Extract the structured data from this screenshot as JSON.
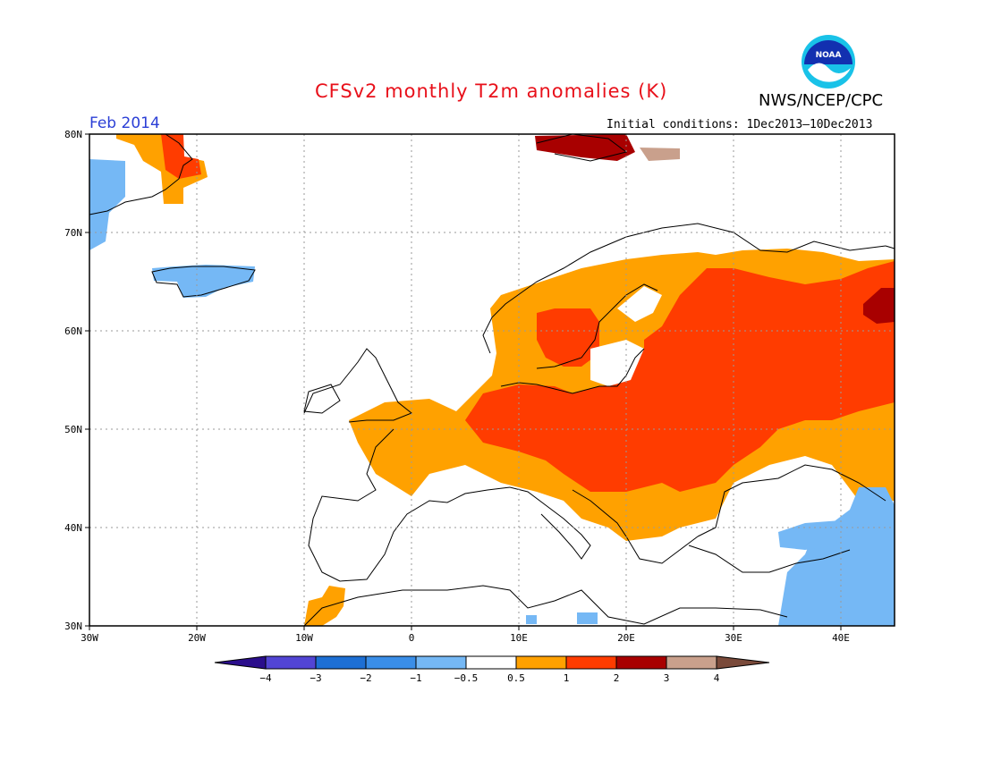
{
  "header": {
    "title": "CFSv2 monthly T2m anomalies (K)",
    "org": "NWS/NCEP/CPC",
    "month": "Feb 2014",
    "initial_conditions": "Initial conditions: 1Dec2013–10Dec2013"
  },
  "logo": {
    "text": "NOAA",
    "colors": {
      "outer": "#19c2e8",
      "inner": "#1230b0"
    }
  },
  "map": {
    "lat_labels": [
      "80N",
      "70N",
      "60N",
      "50N",
      "40N",
      "30N"
    ],
    "lon_labels": [
      "30W",
      "20W",
      "10W",
      "0",
      "10E",
      "20E",
      "30E",
      "40E"
    ]
  },
  "colorbar": {
    "labels": [
      "−4",
      "−3",
      "−2",
      "−1",
      "−0.5",
      "0.5",
      "1",
      "2",
      "3",
      "4"
    ],
    "colors": [
      "#2b0e8c",
      "#5245d4",
      "#1d6fd4",
      "#3a8ee8",
      "#75b8f5",
      "#ffffff",
      "#ffa100",
      "#ff3c00",
      "#a80000",
      "#c9a08c",
      "#7a4a3a"
    ]
  },
  "anomaly_colors": {
    "orange": "#ffa100",
    "red": "#ff3c00",
    "darkred": "#a80000",
    "tan": "#c9a08c",
    "lightblue": "#75b8f5"
  }
}
